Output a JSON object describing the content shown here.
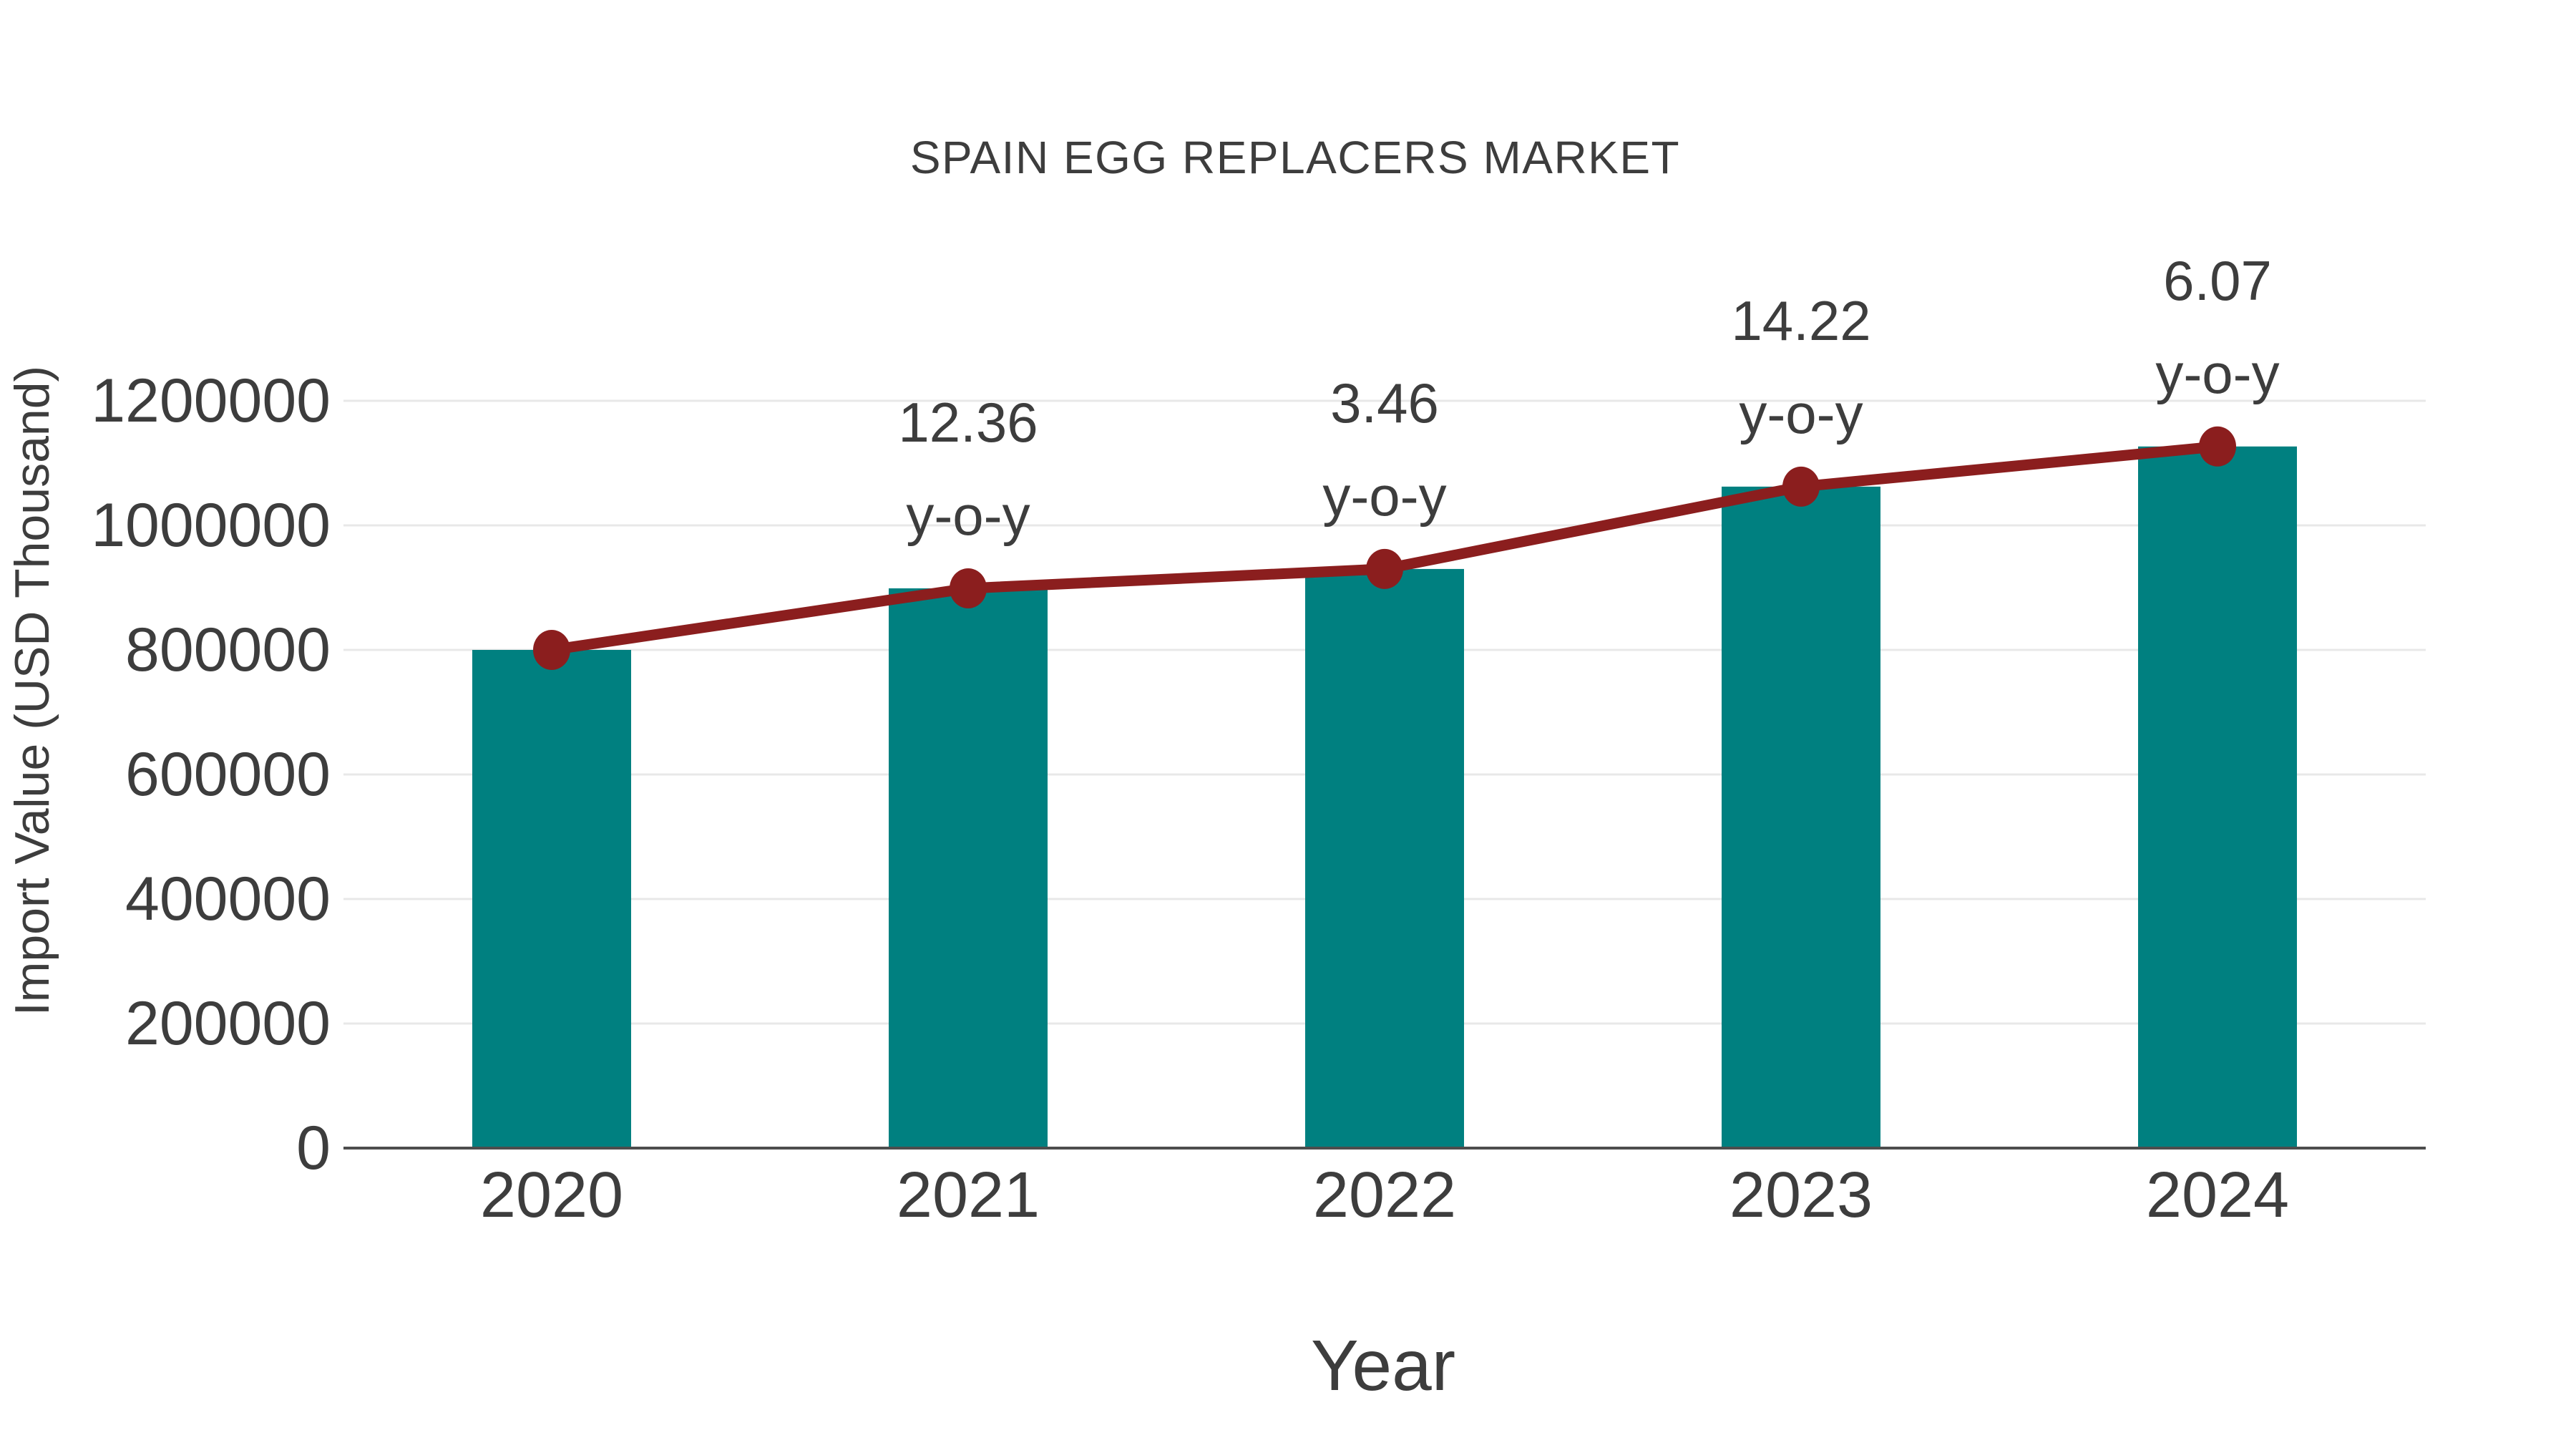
{
  "title": "SPAIN EGG REPLACERS MARKET",
  "colors": {
    "bar": "#008080",
    "line": "#8B1E1E",
    "text": "#3D3D3D",
    "grid": "#E8E8E8",
    "axis": "#4D4D4D",
    "background": "#FFFFFF"
  },
  "chart_data": {
    "type": "bar",
    "title": "SPAIN EGG REPLACERS MARKET",
    "xlabel": "Year",
    "ylabel": "Import Value (USD Thousand)",
    "categories": [
      "2020",
      "2021",
      "2022",
      "2023",
      "2024"
    ],
    "series": [
      {
        "name": "Import Value (USD Thousand)",
        "type": "bar",
        "values": [
          800000,
          898880,
          929981,
          1062224,
          1126701
        ]
      },
      {
        "name": "y-o-y trend",
        "type": "line",
        "values": [
          800000,
          898880,
          929981,
          1062224,
          1126701
        ]
      }
    ],
    "annotations": [
      {
        "category": "2021",
        "value": "12.36",
        "suffix": "y-o-y"
      },
      {
        "category": "2022",
        "value": "3.46",
        "suffix": "y-o-y"
      },
      {
        "category": "2023",
        "value": "14.22",
        "suffix": "y-o-y"
      },
      {
        "category": "2024",
        "value": "6.07",
        "suffix": "y-o-y"
      }
    ],
    "ylim": [
      0,
      1200000
    ],
    "yticks": [
      0,
      200000,
      400000,
      600000,
      800000,
      1000000,
      1200000
    ],
    "grid": "horizontal",
    "legend": "none"
  }
}
